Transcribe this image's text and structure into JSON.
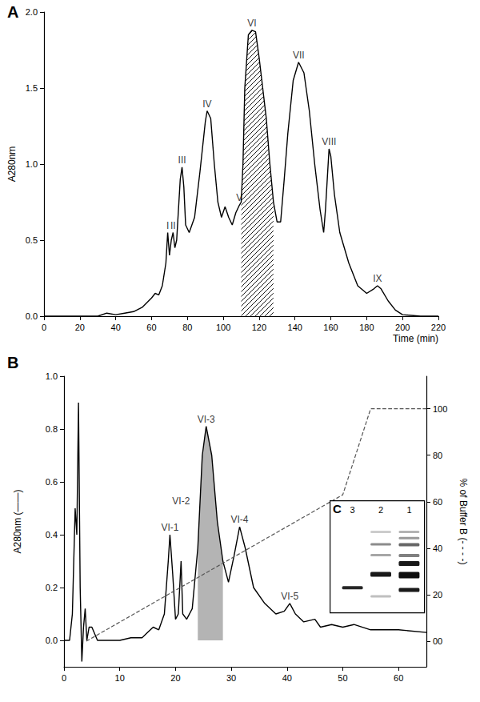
{
  "chart_data": [
    {
      "type": "line",
      "title": "A",
      "x_label": "Time (min)",
      "y_label": "A280nm",
      "xlim": [
        0,
        220
      ],
      "xticks": [
        0,
        20,
        40,
        60,
        80,
        100,
        120,
        140,
        160,
        180,
        200,
        220
      ],
      "ylim": [
        0,
        2
      ],
      "yticks": [
        {
          "value": 0,
          "label": "0.0"
        },
        {
          "value": 0.5,
          "label": "0.5"
        },
        {
          "value": 1,
          "label": "1.0"
        },
        {
          "value": 1.5,
          "label": "1.5"
        },
        {
          "value": 2,
          "label": "2.0"
        }
      ],
      "grid": false,
      "series": [
        {
          "color": "#000000",
          "x": [
            0,
            30,
            35,
            40,
            45,
            50,
            55,
            60,
            62,
            64,
            66,
            68,
            69,
            70,
            71,
            72,
            73,
            74,
            76,
            77,
            78,
            79,
            81,
            84,
            87,
            90,
            91,
            93,
            95,
            97,
            99,
            101,
            103,
            105,
            107,
            109,
            110,
            111,
            112,
            114,
            116,
            118,
            120,
            122,
            124,
            126,
            128,
            130,
            132,
            134,
            136,
            139,
            142,
            145,
            148,
            151,
            154,
            156,
            157,
            159,
            160,
            162,
            165,
            170,
            175,
            180,
            184,
            186,
            188,
            192,
            196,
            200,
            210,
            220
          ],
          "values": [
            0,
            0,
            0.02,
            0.01,
            0.02,
            0.03,
            0.06,
            0.12,
            0.15,
            0.14,
            0.2,
            0.35,
            0.55,
            0.4,
            0.5,
            0.55,
            0.45,
            0.5,
            0.9,
            0.98,
            0.85,
            0.6,
            0.55,
            0.65,
            0.95,
            1.28,
            1.35,
            1.3,
            1.0,
            0.75,
            0.65,
            0.72,
            0.65,
            0.6,
            0.68,
            0.73,
            0.75,
            1.0,
            1.5,
            1.85,
            1.88,
            1.87,
            1.7,
            1.5,
            1.3,
            1.0,
            0.75,
            0.62,
            0.62,
            0.9,
            1.2,
            1.55,
            1.67,
            1.6,
            1.35,
            1.0,
            0.7,
            0.55,
            0.7,
            1.1,
            1.05,
            0.8,
            0.55,
            0.35,
            0.2,
            0.15,
            0.18,
            0.2,
            0.18,
            0.1,
            0.04,
            0.01,
            0,
            0
          ]
        }
      ],
      "highlight": {
        "xlim": [
          110,
          128
        ],
        "fill": "hatched"
      },
      "annotations": [
        {
          "text": "I",
          "x": 69,
          "y": 0.55
        },
        {
          "text": "II",
          "x": 72,
          "y": 0.55
        },
        {
          "text": "III",
          "x": 77,
          "y": 0.98
        },
        {
          "text": "IV",
          "x": 91,
          "y": 1.35
        },
        {
          "text": "V",
          "x": 109,
          "y": 0.73
        },
        {
          "text": "VI",
          "x": 116,
          "y": 1.88
        },
        {
          "text": "VII",
          "x": 142,
          "y": 1.67
        },
        {
          "text": "VIII",
          "x": 159,
          "y": 1.1
        },
        {
          "text": "IX",
          "x": 186,
          "y": 0.2
        }
      ]
    },
    {
      "type": "line",
      "title": "B",
      "y_label": "A280nm (——)",
      "y2_label": "% of Buffer B (- - - -)",
      "xlim": [
        0,
        65
      ],
      "xticks": [
        0,
        10,
        20,
        30,
        40,
        50,
        60
      ],
      "ylim": [
        -0.1,
        1
      ],
      "yticks": [
        {
          "value": 0,
          "label": "0.0"
        },
        {
          "value": 0.2,
          "label": "0.2"
        },
        {
          "value": 0.4,
          "label": "0.4"
        },
        {
          "value": 0.6,
          "label": "0.6"
        },
        {
          "value": 0.8,
          "label": "0.8"
        },
        {
          "value": 1,
          "label": "1.0"
        }
      ],
      "y2lim": [
        -11,
        114
      ],
      "y2ticks": [
        {
          "value": 0,
          "label": "00"
        },
        20,
        40,
        60,
        80,
        100
      ],
      "grid": false,
      "series": [
        {
          "color": "#000000",
          "x": [
            0,
            1,
            1.5,
            2,
            2.3,
            2.6,
            2.9,
            3.2,
            3.5,
            3.8,
            4.1,
            4.5,
            5,
            6,
            8,
            10,
            12,
            14,
            15,
            16,
            17,
            18,
            18.7,
            19,
            19.5,
            20,
            20.5,
            21,
            21.3,
            22,
            23,
            24,
            24.8,
            25.5,
            26.5,
            27.5,
            28.5,
            29.5,
            30.5,
            31.5,
            32.5,
            34,
            36,
            38,
            39.5,
            40.5,
            41.5,
            43,
            45,
            46,
            48,
            50,
            52,
            55,
            60,
            65
          ],
          "values": [
            0,
            0,
            0.1,
            0.5,
            0.4,
            0.9,
            0.2,
            -0.08,
            0.05,
            0.12,
            0,
            0.05,
            0.05,
            0,
            0,
            0,
            0.01,
            0.01,
            0.03,
            0.05,
            0.04,
            0.1,
            0.3,
            0.4,
            0.25,
            0.08,
            0.1,
            0.3,
            0.1,
            0.08,
            0.12,
            0.35,
            0.7,
            0.81,
            0.7,
            0.45,
            0.3,
            0.22,
            0.32,
            0.43,
            0.35,
            0.2,
            0.14,
            0.1,
            0.11,
            0.14,
            0.1,
            0.07,
            0.08,
            0.05,
            0.06,
            0.05,
            0.06,
            0.04,
            0.04,
            0.03
          ]
        },
        {
          "color": "#555555",
          "axis": "y2",
          "line_style": "dashed",
          "x": [
            4,
            50,
            55,
            65
          ],
          "values": [
            0,
            63,
            100,
            100
          ]
        }
      ],
      "highlight": {
        "xlim": [
          24,
          28.5
        ],
        "fill": "#b4b4b4"
      },
      "annotations": [
        {
          "text": "VI-1",
          "x": 19,
          "y": 0.4
        },
        {
          "text": "VI-2",
          "x": 21,
          "y": 0.5
        },
        {
          "text": "VI-3",
          "x": 25.5,
          "y": 0.81
        },
        {
          "text": "VI-4",
          "x": 31.5,
          "y": 0.43
        },
        {
          "text": "VI-5",
          "x": 40.5,
          "y": 0.14
        }
      ],
      "inset": {
        "label": "C",
        "lanes": [
          "3",
          "2",
          "1"
        ]
      }
    }
  ]
}
